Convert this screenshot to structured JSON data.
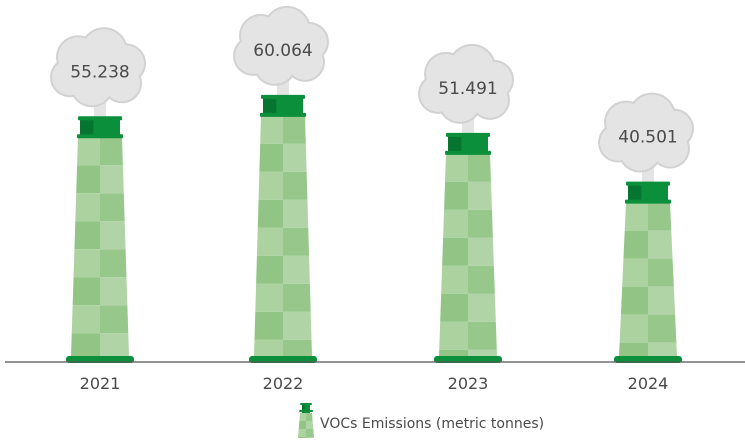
{
  "chart_data": {
    "type": "bar",
    "style": "smokestack pictogram",
    "categories": [
      "2021",
      "2022",
      "2023",
      "2024"
    ],
    "series": [
      {
        "name": "VOCs Emissions (metric tonnes)",
        "values": [
          55.238,
          60.064,
          51.491,
          40.501
        ]
      }
    ],
    "data_labels": [
      "55.238",
      "60.064",
      "51.491",
      "40.501"
    ],
    "ylim": [
      0,
      62
    ],
    "grid": false,
    "legend": "bottom-center",
    "colors": {
      "cap": "#0b8f3a",
      "cap_dark": "#067530",
      "body_light": "#acd2a0",
      "body_dark": "#92c486",
      "smoke": "#e4e4e4",
      "smoke_edge": "#d2d2d2",
      "axis": "#555555",
      "text": "#4a4a4a"
    }
  }
}
